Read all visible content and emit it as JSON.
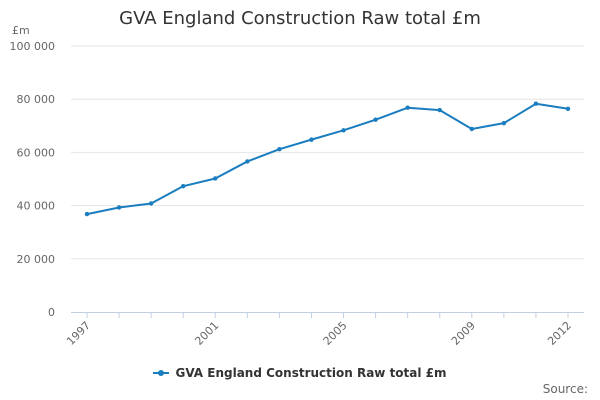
{
  "chart_data": {
    "type": "line",
    "title": "GVA England Construction Raw total £m",
    "ylabel": "£m",
    "xlabel": "",
    "ylim": [
      0,
      100000
    ],
    "yticks": [
      0,
      20000,
      40000,
      60000,
      80000,
      100000
    ],
    "ytick_labels": [
      "0",
      "20 000",
      "40 000",
      "60 000",
      "80 000",
      "100 000"
    ],
    "xlim": [
      1997,
      2012
    ],
    "xticks": [
      1997,
      2001,
      2005,
      2009,
      2012
    ],
    "xtick_labels": [
      "1997",
      "2001",
      "2005",
      "2009",
      "2012"
    ],
    "series": [
      {
        "name": "GVA England Construction Raw total £m",
        "color": "#1a7dc0",
        "x": [
          1997,
          1998,
          1999,
          2000,
          2001,
          2002,
          2003,
          2004,
          2005,
          2006,
          2007,
          2008,
          2009,
          2010,
          2011,
          2012
        ],
        "values": [
          36800,
          39300,
          40800,
          47300,
          50200,
          56600,
          61200,
          64800,
          68300,
          72300,
          76800,
          75900,
          68800,
          71000,
          78300,
          76400
        ]
      }
    ]
  },
  "legend": {
    "label": "GVA England Construction Raw total £m"
  },
  "source": {
    "text": "Source:"
  }
}
